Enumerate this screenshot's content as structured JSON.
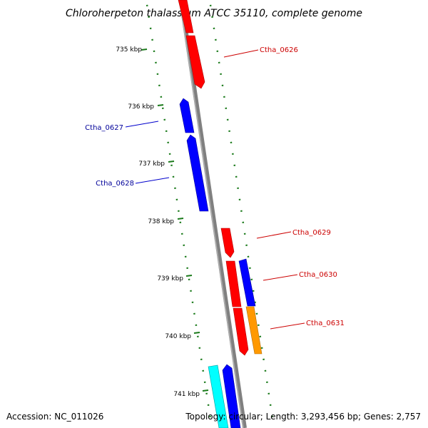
{
  "title": "Chloroherpeton thalassium ATCC 35110, complete genome",
  "accession_text": "Accession: NC_011026",
  "topology_text": "Topology: circular; Length: 3,293,456 bp; Genes: 2,757",
  "colors": {
    "backbone": "#808080",
    "tick": "#1a7a1a",
    "forward_gene": "#ff0000",
    "reverse_gene": "#0000ff",
    "orange_gene": "#ff9900",
    "cyan_gene": "#00ffff",
    "forward_label": "#cc0000",
    "reverse_label": "#000099"
  },
  "ticks": [
    {
      "label": "735 kbp"
    },
    {
      "label": "736 kbp"
    },
    {
      "label": "737 kbp"
    },
    {
      "label": "738 kbp"
    },
    {
      "label": "739 kbp"
    },
    {
      "label": "740 kbp"
    },
    {
      "label": "741 kbp"
    }
  ],
  "gene_labels": [
    {
      "text": "Ctha_0626",
      "strand": "forward"
    },
    {
      "text": "Ctha_0627",
      "strand": "reverse"
    },
    {
      "text": "Ctha_0628",
      "strand": "reverse"
    },
    {
      "text": "Ctha_0629",
      "strand": "forward"
    },
    {
      "text": "Ctha_0630",
      "strand": "forward"
    },
    {
      "text": "Ctha_0631",
      "strand": "forward"
    }
  ]
}
